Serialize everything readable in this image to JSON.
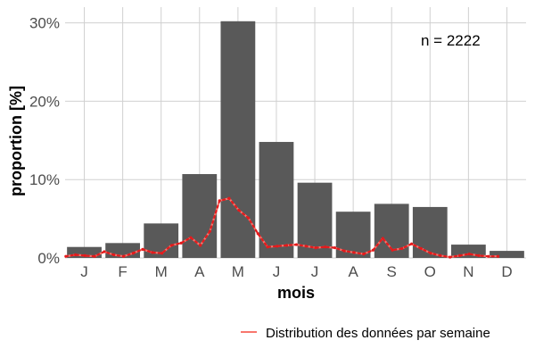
{
  "chart_data": {
    "type": "bar",
    "xlabel": "mois",
    "ylabel": "proportion [%]",
    "categories": [
      "J",
      "F",
      "M",
      "A",
      "M",
      "J",
      "J",
      "A",
      "S",
      "O",
      "N",
      "D"
    ],
    "values": [
      1.4,
      1.9,
      4.4,
      10.7,
      30.2,
      14.8,
      9.6,
      5.9,
      6.9,
      6.5,
      1.7,
      0.9
    ],
    "ylim": [
      0,
      32
    ],
    "yticks": [
      0,
      10,
      20,
      30
    ],
    "ytick_labels": [
      "0%",
      "10%",
      "20%",
      "30%"
    ],
    "grid": true,
    "bar_color": "#595959",
    "annotation": "n = 2222",
    "weekly_series": {
      "name": "Distribution des données par semaine",
      "color": "#f8766d",
      "dot_color": "#e41a1c",
      "x_months": [
        0.0,
        0.25,
        0.5,
        0.75,
        1.0,
        1.25,
        1.5,
        1.75,
        2.0,
        2.25,
        2.5,
        2.75,
        3.0,
        3.25,
        3.5,
        3.75,
        4.0,
        4.25,
        4.5,
        4.75,
        5.0,
        5.25,
        5.5,
        5.75,
        6.0,
        6.25,
        6.5,
        6.75,
        7.0,
        7.25,
        7.5,
        7.75,
        8.0,
        8.25,
        8.5,
        8.75,
        9.0,
        9.25,
        9.5,
        9.75,
        10.0,
        10.25,
        10.5,
        10.75,
        11.0,
        11.25
      ],
      "values": [
        0.2,
        0.4,
        0.3,
        0.2,
        0.8,
        0.4,
        0.2,
        0.6,
        1.1,
        0.7,
        0.6,
        1.6,
        1.9,
        2.6,
        1.6,
        3.4,
        7.3,
        7.6,
        6.1,
        5.1,
        3.1,
        1.4,
        1.5,
        1.6,
        1.7,
        1.5,
        1.3,
        1.4,
        1.3,
        0.9,
        0.7,
        0.5,
        1.0,
        2.5,
        1.0,
        1.2,
        1.8,
        1.2,
        0.6,
        0.3,
        0.1,
        0.3,
        0.5,
        0.3,
        0.2,
        0.2
      ]
    },
    "legend": {
      "position": "bottom-right",
      "label": "Distribution des données par semaine"
    }
  }
}
